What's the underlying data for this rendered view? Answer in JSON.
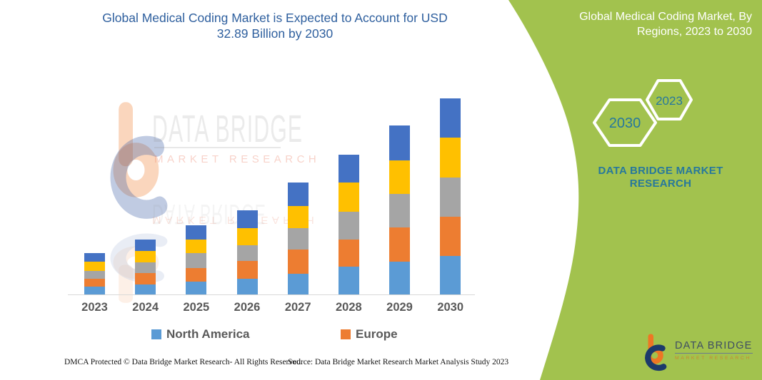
{
  "header": {
    "title_line1": "Global Medical Coding Market is Expected to Account for USD",
    "title_line2": "32.89 Billion by 2030"
  },
  "side_panel": {
    "heading_line1": "Global Medical Coding Market, By",
    "heading_line2": "Regions, 2023 to 2030",
    "hexagon_back_year": "2030",
    "hexagon_front_year": "2023",
    "brand_line1": "DATA BRIDGE MARKET",
    "brand_line2": "RESEARCH",
    "panel_color": "#a2c24e",
    "accent_teal": "#27789c"
  },
  "watermark": {
    "brand": "DATA BRIDGE",
    "subbrand": "MARKET RESEARCH"
  },
  "chart_data": {
    "type": "bar",
    "stacked": true,
    "title": "Global Medical Coding Market, By Regions, 2023 to 2030",
    "unit": "USD Billion",
    "categories": [
      "2023",
      "2024",
      "2025",
      "2026",
      "2027",
      "2028",
      "2029",
      "2030"
    ],
    "series": [
      {
        "name": "North America",
        "color": "#5b9bd5",
        "in_legend": true,
        "values": [
          1.35,
          1.71,
          2.15,
          2.63,
          3.5,
          4.63,
          5.5,
          6.42
        ]
      },
      {
        "name": "Europe",
        "color": "#ed7d31",
        "in_legend": true,
        "values": [
          1.28,
          1.91,
          2.32,
          2.99,
          3.99,
          4.54,
          5.78,
          6.65
        ]
      },
      {
        "name": "",
        "color": "#a5a5a5",
        "in_legend": false,
        "values": [
          1.32,
          1.79,
          2.51,
          2.6,
          3.59,
          4.66,
          5.62,
          6.58
        ]
      },
      {
        "name": "",
        "color": "#ffc000",
        "in_legend": false,
        "values": [
          1.51,
          1.88,
          2.27,
          2.87,
          3.78,
          4.99,
          5.58,
          6.58
        ]
      },
      {
        "name": "",
        "color": "#4472c4",
        "in_legend": false,
        "values": [
          1.52,
          1.95,
          2.39,
          2.99,
          3.95,
          4.62,
          5.78,
          6.66
        ]
      }
    ],
    "totals": [
      6.98,
      9.24,
      11.64,
      14.08,
      18.81,
      23.44,
      28.26,
      32.89
    ],
    "legend": [
      {
        "label": "North America",
        "color": "#5b9bd5"
      },
      {
        "label": "Europe",
        "color": "#ed7d31"
      }
    ],
    "legend_position": "bottom",
    "xlabel": "",
    "ylabel": "",
    "ylim": [
      0,
      33
    ],
    "grid": false,
    "y_axis_visible": false
  },
  "logo": {
    "brand": "DATA BRIDGE",
    "subbrand": "MARKET RESEARCH"
  },
  "footer": {
    "left": "DMCA Protected © Data Bridge Market Research-  All Rights Reserved.",
    "source": "Source: Data Bridge Market Research  Market Analysis Study 2023"
  }
}
